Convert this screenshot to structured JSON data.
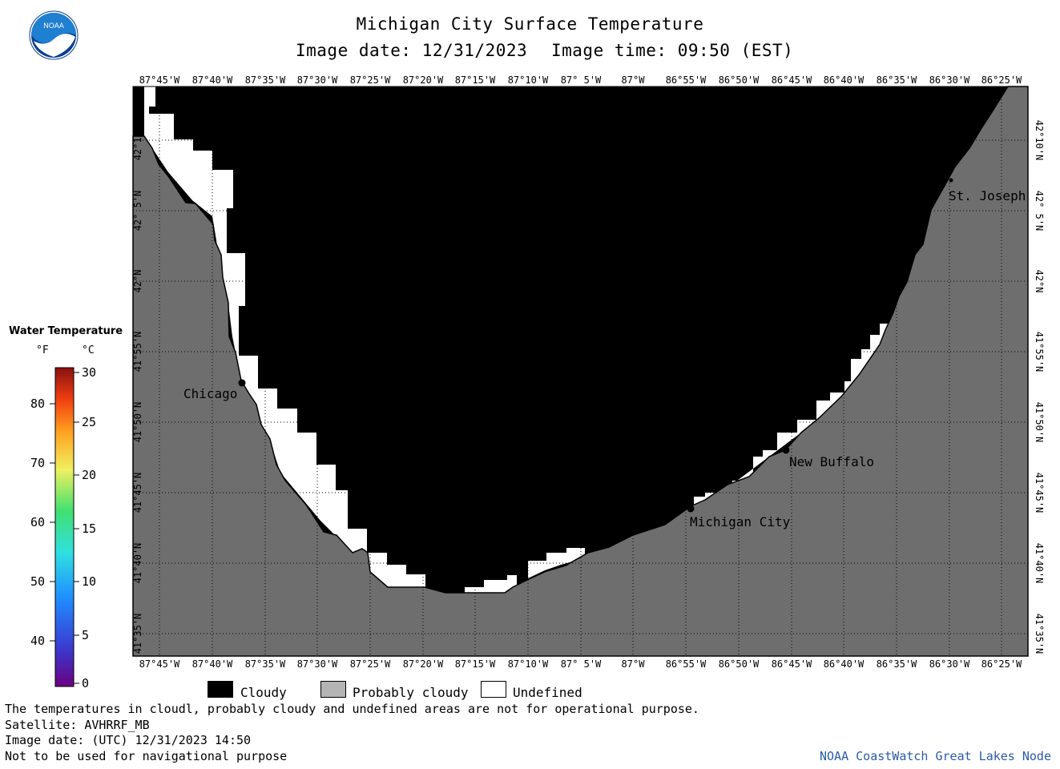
{
  "header": {
    "title": "Michigan City Surface Temperature",
    "subtitle_date": "Image date: 12/31/2023",
    "subtitle_time": "Image time: 09:50 (EST)"
  },
  "logo": {
    "text": "NOAA",
    "icon": "noaa-logo-icon",
    "colors": {
      "sky": "#1f7fd0",
      "bird": "#ffffff",
      "dark": "#0a3d8f"
    }
  },
  "axes": {
    "longitude_ticks": [
      "87°45'W",
      "87°40'W",
      "87°35'W",
      "87°30'W",
      "87°25'W",
      "87°20'W",
      "87°15'W",
      "87°10'W",
      "87° 5'W",
      "87°W",
      "86°55'W",
      "86°50'W",
      "86°45'W",
      "86°40'W",
      "86°35'W",
      "86°30'W",
      "86°25'W"
    ],
    "latitude_ticks": [
      "42°10'N",
      "42° 5'N",
      "42°N",
      "41°55'N",
      "41°50'N",
      "41°45'N",
      "41°40'N",
      "41°35'N"
    ]
  },
  "places": [
    {
      "name": "Chicago"
    },
    {
      "name": "Michigan City"
    },
    {
      "name": "New Buffalo"
    },
    {
      "name": "St. Joseph"
    }
  ],
  "colorbar": {
    "title": "Water Temperature",
    "unit_f": "°F",
    "unit_c": "°C",
    "fahrenheit_ticks": [
      "80",
      "70",
      "60",
      "50",
      "40"
    ],
    "celsius_ticks": [
      "30",
      "25",
      "20",
      "15",
      "10",
      "5",
      "0"
    ]
  },
  "legend": [
    {
      "label": "Cloudy",
      "color": "#000000"
    },
    {
      "label": "Probably cloudy",
      "color": "#b4b4b4"
    },
    {
      "label": "Undefined",
      "color": "#ffffff"
    }
  ],
  "colors": {
    "land": "#6e6e6e",
    "cloud": "#000000",
    "undefined": "#ffffff",
    "grid": "#000000"
  },
  "footer": {
    "line1": "The temperatures in cloudl, probably cloudy and undefined areas are not for operational purpose.",
    "line2": "Satellite: AVHRRF_MB",
    "line3": "Image date: (UTC) 12/31/2023  14:50",
    "line4": "Not to be used for navigational purpose",
    "credit": "NOAA CoastWatch Great Lakes Node"
  }
}
